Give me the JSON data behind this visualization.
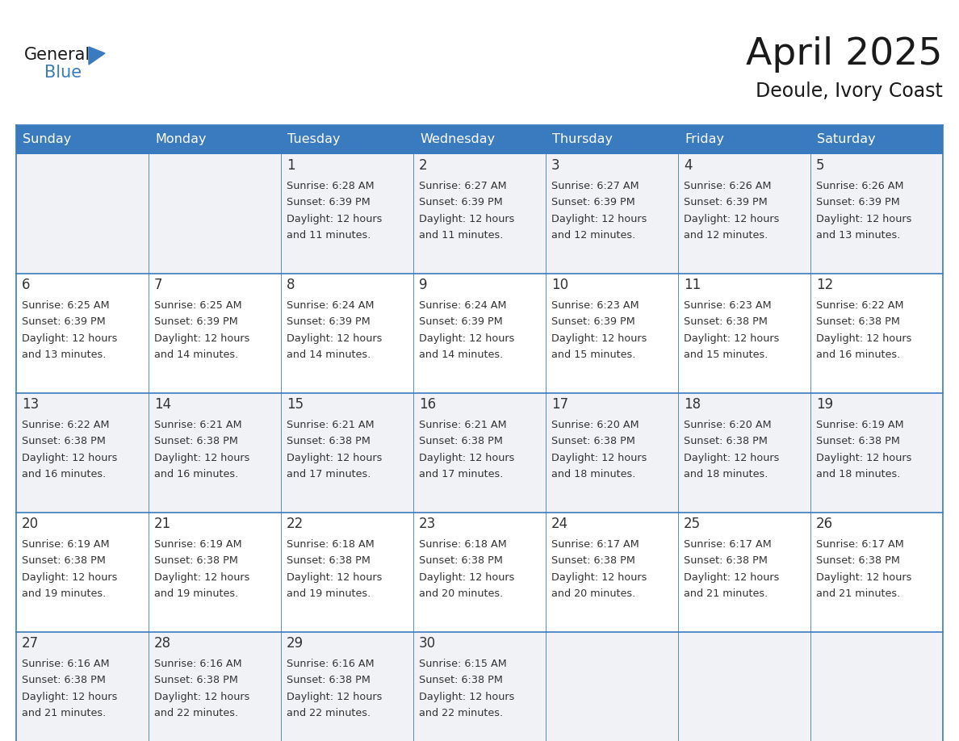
{
  "title": "April 2025",
  "subtitle": "Deoule, Ivory Coast",
  "days_of_week": [
    "Sunday",
    "Monday",
    "Tuesday",
    "Wednesday",
    "Thursday",
    "Friday",
    "Saturday"
  ],
  "header_bg": "#3a7bbf",
  "header_text_color": "#ffffff",
  "row_bg_odd": "#f0f2f5",
  "row_bg_even": "#ffffff",
  "border_color": "#3a7bbf",
  "sep_color": "#3a7bbf",
  "text_color": "#333333",
  "title_color": "#1a1a1a",
  "logo_color_general": "#1a1a1a",
  "logo_color_blue": "#3a7bbf",
  "calendar_data": [
    [
      {
        "day": null,
        "sunrise": null,
        "sunset": null,
        "daylight": null
      },
      {
        "day": null,
        "sunrise": null,
        "sunset": null,
        "daylight": null
      },
      {
        "day": 1,
        "sunrise": "6:28 AM",
        "sunset": "6:39 PM",
        "daylight": "12 hours and 11 minutes."
      },
      {
        "day": 2,
        "sunrise": "6:27 AM",
        "sunset": "6:39 PM",
        "daylight": "12 hours and 11 minutes."
      },
      {
        "day": 3,
        "sunrise": "6:27 AM",
        "sunset": "6:39 PM",
        "daylight": "12 hours and 12 minutes."
      },
      {
        "day": 4,
        "sunrise": "6:26 AM",
        "sunset": "6:39 PM",
        "daylight": "12 hours and 12 minutes."
      },
      {
        "day": 5,
        "sunrise": "6:26 AM",
        "sunset": "6:39 PM",
        "daylight": "12 hours and 13 minutes."
      }
    ],
    [
      {
        "day": 6,
        "sunrise": "6:25 AM",
        "sunset": "6:39 PM",
        "daylight": "12 hours and 13 minutes."
      },
      {
        "day": 7,
        "sunrise": "6:25 AM",
        "sunset": "6:39 PM",
        "daylight": "12 hours and 14 minutes."
      },
      {
        "day": 8,
        "sunrise": "6:24 AM",
        "sunset": "6:39 PM",
        "daylight": "12 hours and 14 minutes."
      },
      {
        "day": 9,
        "sunrise": "6:24 AM",
        "sunset": "6:39 PM",
        "daylight": "12 hours and 14 minutes."
      },
      {
        "day": 10,
        "sunrise": "6:23 AM",
        "sunset": "6:39 PM",
        "daylight": "12 hours and 15 minutes."
      },
      {
        "day": 11,
        "sunrise": "6:23 AM",
        "sunset": "6:38 PM",
        "daylight": "12 hours and 15 minutes."
      },
      {
        "day": 12,
        "sunrise": "6:22 AM",
        "sunset": "6:38 PM",
        "daylight": "12 hours and 16 minutes."
      }
    ],
    [
      {
        "day": 13,
        "sunrise": "6:22 AM",
        "sunset": "6:38 PM",
        "daylight": "12 hours and 16 minutes."
      },
      {
        "day": 14,
        "sunrise": "6:21 AM",
        "sunset": "6:38 PM",
        "daylight": "12 hours and 16 minutes."
      },
      {
        "day": 15,
        "sunrise": "6:21 AM",
        "sunset": "6:38 PM",
        "daylight": "12 hours and 17 minutes."
      },
      {
        "day": 16,
        "sunrise": "6:21 AM",
        "sunset": "6:38 PM",
        "daylight": "12 hours and 17 minutes."
      },
      {
        "day": 17,
        "sunrise": "6:20 AM",
        "sunset": "6:38 PM",
        "daylight": "12 hours and 18 minutes."
      },
      {
        "day": 18,
        "sunrise": "6:20 AM",
        "sunset": "6:38 PM",
        "daylight": "12 hours and 18 minutes."
      },
      {
        "day": 19,
        "sunrise": "6:19 AM",
        "sunset": "6:38 PM",
        "daylight": "12 hours and 18 minutes."
      }
    ],
    [
      {
        "day": 20,
        "sunrise": "6:19 AM",
        "sunset": "6:38 PM",
        "daylight": "12 hours and 19 minutes."
      },
      {
        "day": 21,
        "sunrise": "6:19 AM",
        "sunset": "6:38 PM",
        "daylight": "12 hours and 19 minutes."
      },
      {
        "day": 22,
        "sunrise": "6:18 AM",
        "sunset": "6:38 PM",
        "daylight": "12 hours and 19 minutes."
      },
      {
        "day": 23,
        "sunrise": "6:18 AM",
        "sunset": "6:38 PM",
        "daylight": "12 hours and 20 minutes."
      },
      {
        "day": 24,
        "sunrise": "6:17 AM",
        "sunset": "6:38 PM",
        "daylight": "12 hours and 20 minutes."
      },
      {
        "day": 25,
        "sunrise": "6:17 AM",
        "sunset": "6:38 PM",
        "daylight": "12 hours and 21 minutes."
      },
      {
        "day": 26,
        "sunrise": "6:17 AM",
        "sunset": "6:38 PM",
        "daylight": "12 hours and 21 minutes."
      }
    ],
    [
      {
        "day": 27,
        "sunrise": "6:16 AM",
        "sunset": "6:38 PM",
        "daylight": "12 hours and 21 minutes."
      },
      {
        "day": 28,
        "sunrise": "6:16 AM",
        "sunset": "6:38 PM",
        "daylight": "12 hours and 22 minutes."
      },
      {
        "day": 29,
        "sunrise": "6:16 AM",
        "sunset": "6:38 PM",
        "daylight": "12 hours and 22 minutes."
      },
      {
        "day": 30,
        "sunrise": "6:15 AM",
        "sunset": "6:38 PM",
        "daylight": "12 hours and 22 minutes."
      },
      {
        "day": null,
        "sunrise": null,
        "sunset": null,
        "daylight": null
      },
      {
        "day": null,
        "sunrise": null,
        "sunset": null,
        "daylight": null
      },
      {
        "day": null,
        "sunrise": null,
        "sunset": null,
        "daylight": null
      }
    ]
  ]
}
